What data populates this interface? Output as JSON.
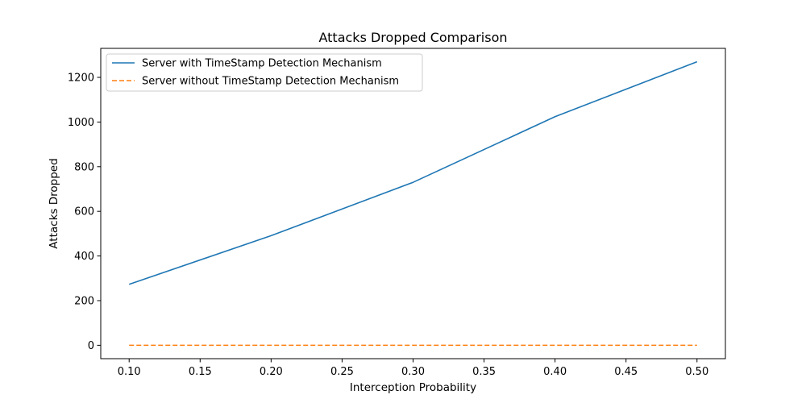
{
  "chart_data": {
    "type": "line",
    "title": "Attacks Dropped Comparison",
    "xlabel": "Interception Probability",
    "ylabel": "Attacks Dropped",
    "x": [
      0.1,
      0.2,
      0.3,
      0.4,
      0.5
    ],
    "xlim": [
      0.08,
      0.52
    ],
    "ylim": [
      -60,
      1330
    ],
    "x_ticks": [
      "0.10",
      "0.15",
      "0.20",
      "0.25",
      "0.30",
      "0.35",
      "0.40",
      "0.45",
      "0.50"
    ],
    "y_ticks": [
      "0",
      "200",
      "400",
      "600",
      "800",
      "1000",
      "1200"
    ],
    "grid": false,
    "legend_position": "upper-left",
    "series": [
      {
        "name": "Server with TimeStamp Detection Mechanism",
        "values": [
          273,
          491,
          730,
          1024,
          1270
        ],
        "color": "#1f77b4",
        "line_style": "solid"
      },
      {
        "name": "Server without TimeStamp Detection Mechanism",
        "values": [
          0,
          0,
          0,
          0,
          0
        ],
        "color": "#ff7f0e",
        "line_style": "dashed"
      }
    ]
  }
}
